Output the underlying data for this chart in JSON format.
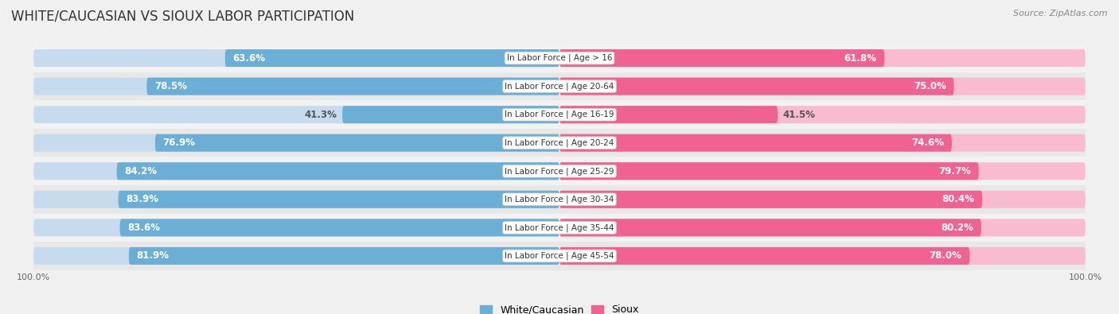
{
  "title": "White/Caucasian vs Sioux Labor Participation",
  "source": "Source: ZipAtlas.com",
  "categories": [
    "In Labor Force | Age > 16",
    "In Labor Force | Age 20-64",
    "In Labor Force | Age 16-19",
    "In Labor Force | Age 20-24",
    "In Labor Force | Age 25-29",
    "In Labor Force | Age 30-34",
    "In Labor Force | Age 35-44",
    "In Labor Force | Age 45-54"
  ],
  "white_values": [
    63.6,
    78.5,
    41.3,
    76.9,
    84.2,
    83.9,
    83.6,
    81.9
  ],
  "sioux_values": [
    61.8,
    75.0,
    41.5,
    74.6,
    79.7,
    80.4,
    80.2,
    78.0
  ],
  "white_color": "#6BAED6",
  "white_color_light": "#C6DCEE",
  "sioux_color": "#F06292",
  "sioux_color_light": "#F8BBD0",
  "row_bg_light": "#F2F2F2",
  "row_bg_dark": "#E8E8E8",
  "label_color_dark": "#555555",
  "max_value": 100.0,
  "bar_height": 0.62,
  "title_fontsize": 12,
  "label_fontsize": 8.5,
  "category_fontsize": 7.5,
  "legend_fontsize": 9,
  "axis_label_fontsize": 8
}
